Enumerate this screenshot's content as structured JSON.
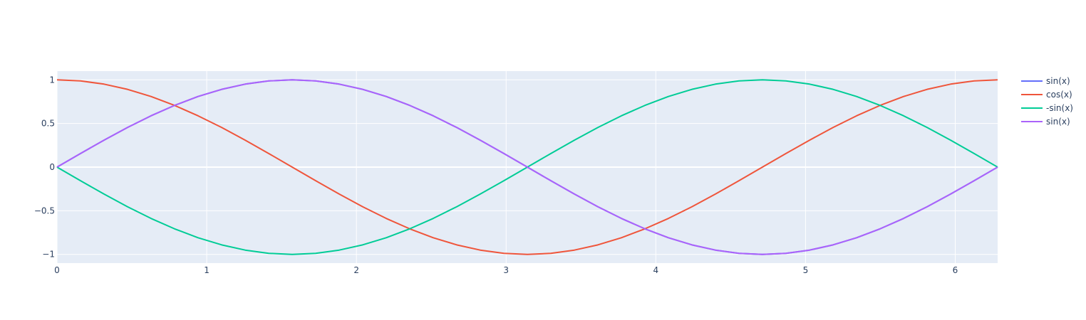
{
  "chart_data": {
    "type": "line",
    "title": "",
    "xlabel": "",
    "ylabel": "",
    "xlim": [
      0,
      6.283185
    ],
    "ylim": [
      -1.1,
      1.1
    ],
    "xticks": [
      0,
      1,
      2,
      3,
      4,
      5,
      6
    ],
    "xtick_labels": [
      "0",
      "1",
      "2",
      "3",
      "4",
      "5",
      "6"
    ],
    "yticks": [
      1,
      0.5,
      0,
      -0.5,
      -1
    ],
    "ytick_labels": [
      "1",
      "0.5",
      "0",
      "−0.5",
      "−1"
    ],
    "grid": true,
    "legend_position": "right",
    "plot_background": "#e5ecf6",
    "x": [
      0,
      0.157,
      0.314,
      0.471,
      0.628,
      0.785,
      0.942,
      1.1,
      1.257,
      1.414,
      1.571,
      1.728,
      1.885,
      2.042,
      2.199,
      2.356,
      2.513,
      2.67,
      2.827,
      2.985,
      3.142,
      3.299,
      3.456,
      3.613,
      3.77,
      3.927,
      4.084,
      4.241,
      4.398,
      4.555,
      4.712,
      4.869,
      5.027,
      5.184,
      5.341,
      5.498,
      5.655,
      5.812,
      5.969,
      6.126,
      6.283
    ],
    "series": [
      {
        "name": "sin(x)",
        "color": "#636efa",
        "values": [
          0,
          0.156,
          0.309,
          0.454,
          0.588,
          0.707,
          0.809,
          0.891,
          0.951,
          0.988,
          1,
          0.988,
          0.951,
          0.891,
          0.809,
          0.707,
          0.588,
          0.454,
          0.309,
          0.156,
          0,
          -0.156,
          -0.309,
          -0.454,
          -0.588,
          -0.707,
          -0.809,
          -0.891,
          -0.951,
          -0.988,
          -1,
          -0.988,
          -0.951,
          -0.891,
          -0.809,
          -0.707,
          -0.588,
          -0.454,
          -0.309,
          -0.156,
          0
        ]
      },
      {
        "name": "cos(x)",
        "color": "#ef553b",
        "values": [
          1,
          0.988,
          0.951,
          0.891,
          0.809,
          0.707,
          0.588,
          0.454,
          0.309,
          0.156,
          0,
          -0.156,
          -0.309,
          -0.454,
          -0.588,
          -0.707,
          -0.809,
          -0.891,
          -0.951,
          -0.988,
          -1,
          -0.988,
          -0.951,
          -0.891,
          -0.809,
          -0.707,
          -0.588,
          -0.454,
          -0.309,
          -0.156,
          0,
          0.156,
          0.309,
          0.454,
          0.588,
          0.707,
          0.809,
          0.891,
          0.951,
          0.988,
          1
        ]
      },
      {
        "name": "-sin(x)",
        "color": "#00cc96",
        "values": [
          0,
          -0.156,
          -0.309,
          -0.454,
          -0.588,
          -0.707,
          -0.809,
          -0.891,
          -0.951,
          -0.988,
          -1,
          -0.988,
          -0.951,
          -0.891,
          -0.809,
          -0.707,
          -0.588,
          -0.454,
          -0.309,
          -0.156,
          0,
          0.156,
          0.309,
          0.454,
          0.588,
          0.707,
          0.809,
          0.891,
          0.951,
          0.988,
          1,
          0.988,
          0.951,
          0.891,
          0.809,
          0.707,
          0.588,
          0.454,
          0.309,
          0.156,
          0
        ]
      },
      {
        "name": "sin(x)",
        "color": "#ab63fa",
        "values": [
          0,
          0.156,
          0.309,
          0.454,
          0.588,
          0.707,
          0.809,
          0.891,
          0.951,
          0.988,
          1,
          0.988,
          0.951,
          0.891,
          0.809,
          0.707,
          0.588,
          0.454,
          0.309,
          0.156,
          0,
          -0.156,
          -0.309,
          -0.454,
          -0.588,
          -0.707,
          -0.809,
          -0.891,
          -0.951,
          -0.988,
          -1,
          -0.988,
          -0.951,
          -0.891,
          -0.809,
          -0.707,
          -0.588,
          -0.454,
          -0.309,
          -0.156,
          0
        ]
      }
    ]
  }
}
